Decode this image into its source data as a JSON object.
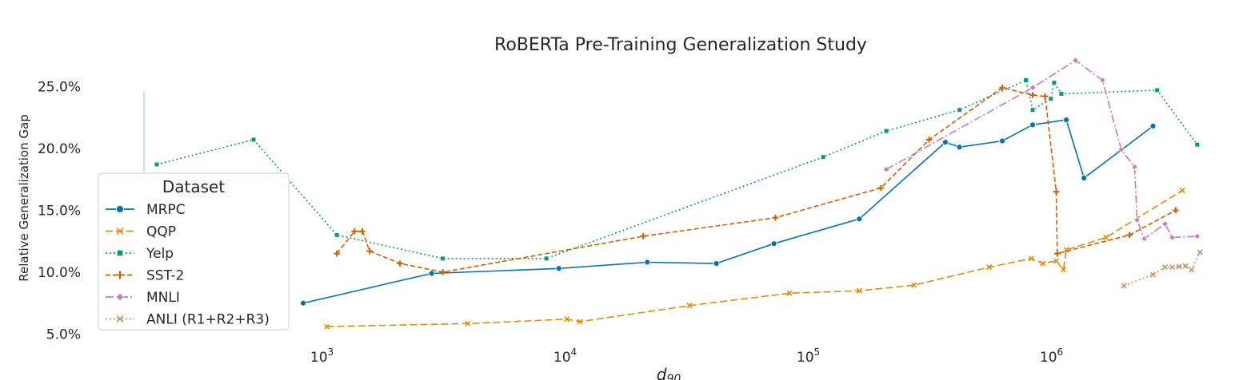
{
  "chart_data": {
    "type": "line",
    "title": "RoBERTa Pre-Training Generalization Study",
    "xlabel": "d",
    "xlabel_sub": "90",
    "ylabel": "Relative Generalization Gap",
    "xscale": "log",
    "xlim": [
      115,
      4200000
    ],
    "ylim": [
      4.9,
      26.5
    ],
    "yticks": [
      5,
      10,
      15,
      20,
      25
    ],
    "ytick_labels": [
      "5.0%",
      "10.0%",
      "15.0%",
      "20.0%",
      "25.0%"
    ],
    "xticks": [
      {
        "value": 1000,
        "base": "10",
        "exp": "3"
      },
      {
        "value": 10000,
        "base": "10",
        "exp": "4"
      },
      {
        "value": 100000,
        "base": "10",
        "exp": "5"
      },
      {
        "value": 1000000,
        "base": "10",
        "exp": "6"
      }
    ],
    "legend": {
      "title": "Dataset",
      "position": "middle-left"
    },
    "series": [
      {
        "name": "MRPC",
        "color": "#0173b2",
        "dash": "",
        "marker": "circle",
        "points": [
          [
            800,
            7.5
          ],
          [
            2700,
            9.9
          ],
          [
            9000,
            10.3
          ],
          [
            20800,
            10.8
          ],
          [
            40000,
            10.7
          ],
          [
            69000,
            12.3
          ],
          [
            155000,
            14.3
          ],
          [
            350000,
            20.5
          ],
          [
            400000,
            20.1
          ],
          [
            600000,
            20.6
          ],
          [
            800000,
            21.9
          ],
          [
            1100000,
            22.3
          ],
          [
            1300000,
            17.6
          ],
          [
            2500000,
            21.8
          ]
        ]
      },
      {
        "name": "QQP",
        "color": "#de8f05",
        "dash": "9,4",
        "marker": "x",
        "points": [
          [
            1000,
            5.6
          ],
          [
            3800,
            5.85
          ],
          [
            9700,
            6.2
          ],
          [
            11000,
            6.0
          ],
          [
            31000,
            7.3
          ],
          [
            80000,
            8.3
          ],
          [
            155000,
            8.5
          ],
          [
            260000,
            8.95
          ],
          [
            530000,
            10.4
          ],
          [
            790000,
            11.1
          ],
          [
            880000,
            10.7
          ],
          [
            1000000,
            10.9
          ],
          [
            1070000,
            10.2
          ],
          [
            1100000,
            11.8
          ],
          [
            1600000,
            12.8
          ],
          [
            3300000,
            16.6
          ]
        ]
      },
      {
        "name": "Yelp",
        "color": "#029e73",
        "dash": "2,3",
        "marker": "square",
        "points": [
          [
            200,
            18.7
          ],
          [
            500,
            20.7
          ],
          [
            1100,
            13.0
          ],
          [
            3000,
            11.1
          ],
          [
            8000,
            11.1
          ],
          [
            110000,
            19.3
          ],
          [
            200000,
            21.4
          ],
          [
            400000,
            23.1
          ],
          [
            750000,
            25.5
          ],
          [
            800000,
            23.1
          ],
          [
            950000,
            24.0
          ],
          [
            980000,
            25.3
          ],
          [
            1050000,
            24.4
          ],
          [
            2600000,
            24.7
          ],
          [
            3800000,
            20.3
          ]
        ]
      },
      {
        "name": "SST-2",
        "color": "#d55e00",
        "dash": "6,3",
        "marker": "plus",
        "points": [
          [
            1100,
            11.5
          ],
          [
            1300,
            13.3
          ],
          [
            1400,
            13.3
          ],
          [
            1500,
            11.7
          ],
          [
            2000,
            10.7
          ],
          [
            3000,
            10.0
          ],
          [
            20000,
            12.9
          ],
          [
            70000,
            14.4
          ],
          [
            190000,
            16.8
          ],
          [
            300000,
            20.7
          ],
          [
            600000,
            24.9
          ],
          [
            800000,
            24.3
          ],
          [
            900000,
            24.2
          ],
          [
            1000000,
            16.5
          ],
          [
            1010000,
            11.5
          ],
          [
            2000000,
            13.0
          ],
          [
            3100000,
            15.0
          ]
        ]
      },
      {
        "name": "MNLI",
        "color": "#cc78bc",
        "dash": "10,3,2,3",
        "marker": "diamond",
        "points": [
          [
            200000,
            18.3
          ],
          [
            800000,
            24.9
          ],
          [
            1200000,
            27.1
          ],
          [
            1550000,
            25.5
          ],
          [
            1850000,
            19.9
          ],
          [
            2100000,
            18.5
          ],
          [
            2150000,
            14.2
          ],
          [
            2300000,
            12.7
          ],
          [
            2800000,
            13.9
          ],
          [
            3000000,
            12.8
          ],
          [
            3800000,
            12.9
          ]
        ]
      },
      {
        "name": "ANLI (R1+R2+R3)",
        "color": "#ca9161",
        "dash": "2,3",
        "marker": "x",
        "points": [
          [
            1900000,
            8.9
          ],
          [
            2500000,
            9.8
          ],
          [
            2800000,
            10.4
          ],
          [
            3000000,
            10.4
          ],
          [
            3200000,
            10.45
          ],
          [
            3400000,
            10.5
          ],
          [
            3600000,
            10.2
          ],
          [
            3900000,
            11.6
          ]
        ]
      }
    ]
  }
}
